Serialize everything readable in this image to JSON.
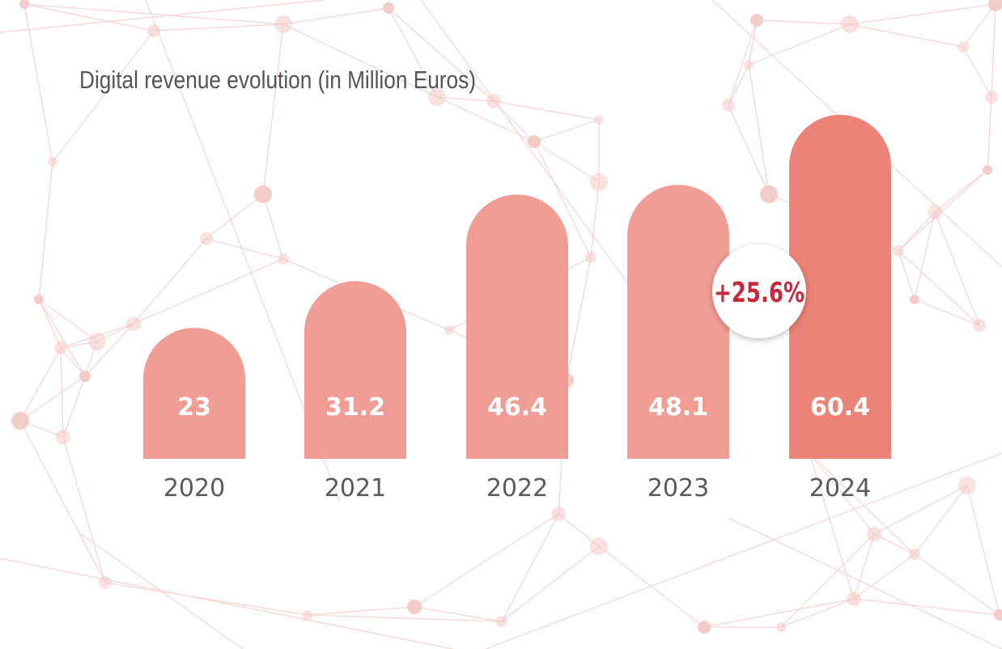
{
  "colors": {
    "bar": "#f19d95",
    "bar_highlight": "#ec8378",
    "growth_text": "#c8283c",
    "background_network": "#f2c9c5"
  },
  "chart_data": {
    "type": "bar",
    "title": "Digital revenue evolution (in Million Euros)",
    "xlabel": "",
    "ylabel": "",
    "categories": [
      "2020",
      "2021",
      "2022",
      "2023",
      "2024"
    ],
    "values": [
      23,
      31.2,
      46.4,
      48.1,
      60.4
    ],
    "value_labels": [
      "23",
      "31.2",
      "46.4",
      "48.1",
      "60.4"
    ],
    "highlight_index": 4,
    "annotation": {
      "text": "+25.6%",
      "from_index": 3,
      "to_index": 4
    },
    "grid": false,
    "legend": "none"
  }
}
